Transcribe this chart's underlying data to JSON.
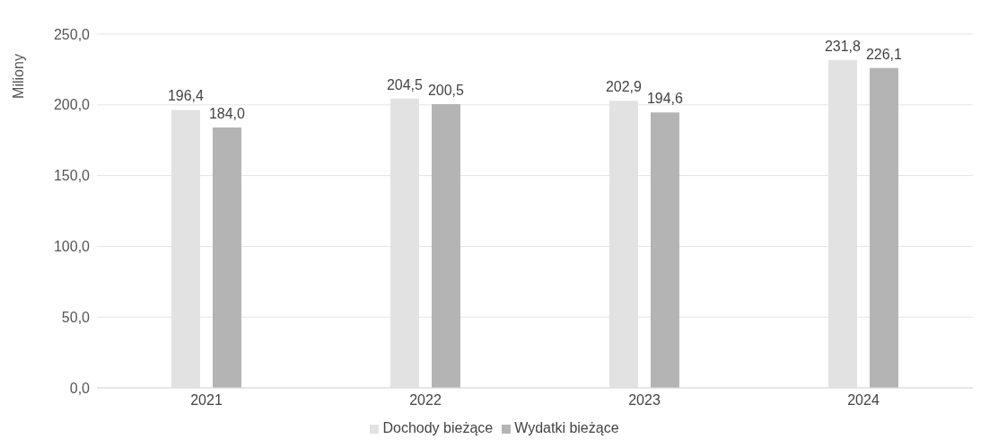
{
  "chart_data": {
    "type": "bar",
    "ylabel": "Miliony",
    "categories": [
      "2021",
      "2022",
      "2023",
      "2024"
    ],
    "series": [
      {
        "name": "Dochody bieżące",
        "color": "#e2e2e2",
        "values": [
          196.4,
          204.5,
          202.9,
          231.8
        ],
        "value_labels": [
          "196,4",
          "204,5",
          "202,9",
          "231,8"
        ]
      },
      {
        "name": "Wydatki bieżące",
        "color": "#b4b4b4",
        "values": [
          184.0,
          200.5,
          194.6,
          226.1
        ],
        "value_labels": [
          "184,0",
          "200,5",
          "194,6",
          "226,1"
        ]
      }
    ],
    "ylim": [
      0,
      250
    ],
    "yticks": [
      {
        "value": 0,
        "label": "0,0"
      },
      {
        "value": 50,
        "label": "50,0"
      },
      {
        "value": 100,
        "label": "100,0"
      },
      {
        "value": 150,
        "label": "150,0"
      },
      {
        "value": 200,
        "label": "200,0"
      },
      {
        "value": 250,
        "label": "250,0"
      }
    ],
    "grid": "y",
    "legend": "bottom"
  }
}
